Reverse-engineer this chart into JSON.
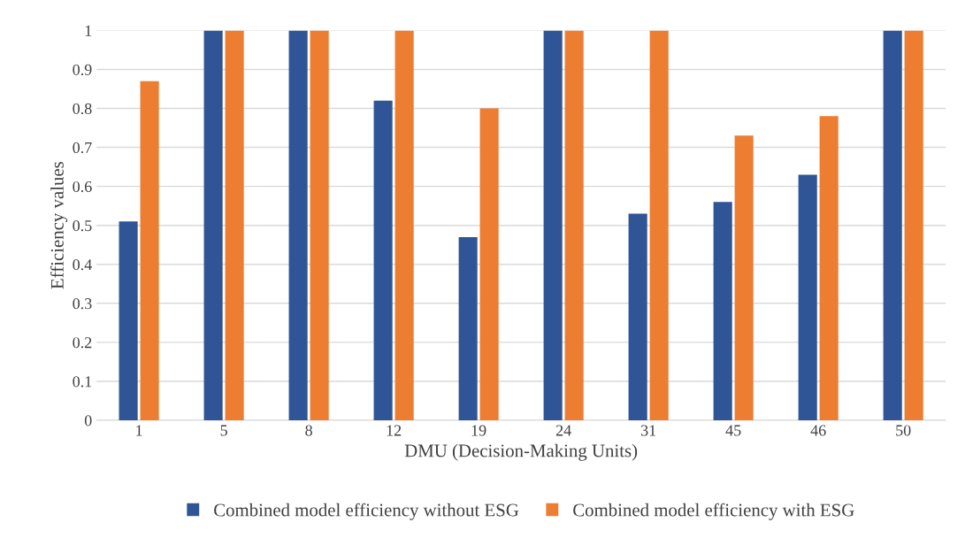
{
  "chart_data": {
    "type": "bar",
    "xlabel": "DMU (Decision-Making Units)",
    "ylabel": "Efficiency values",
    "categories": [
      "1",
      "5",
      "8",
      "12",
      "19",
      "24",
      "31",
      "45",
      "46",
      "50"
    ],
    "series": [
      {
        "name": "Combined model efficiency without ESG",
        "color": "#2f5597",
        "values": [
          0.51,
          1,
          1,
          0.82,
          0.47,
          1,
          0.53,
          0.56,
          0.63,
          1
        ]
      },
      {
        "name": "Combined model efficiency with ESG",
        "color": "#ed7d31",
        "values": [
          0.87,
          1,
          1,
          1,
          0.8,
          1,
          1,
          0.73,
          0.78,
          1
        ]
      }
    ],
    "ylim": [
      0,
      1
    ],
    "yticks": [
      0,
      0.1,
      0.2,
      0.3,
      0.4,
      0.5,
      0.6,
      0.7,
      0.8,
      0.9,
      1
    ],
    "grid": "y",
    "legend": "bottom"
  }
}
